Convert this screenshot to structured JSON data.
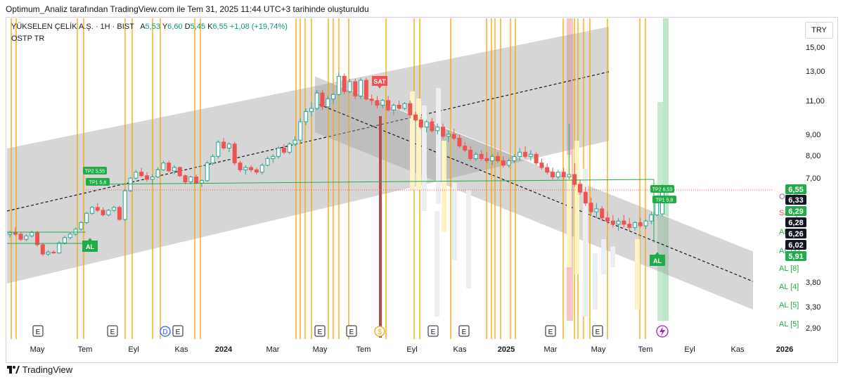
{
  "header": {
    "title": "Optimum_Analiz tarafından TradingView.com ile Tem 31, 2025 11:44 UTC+3 tarihinde oluşturuldu"
  },
  "legend": {
    "symbol": "YÜKSELEN ÇELİK A.Ş. · 1H · BIST",
    "o_label": "A",
    "o": "5,53",
    "h_label": "Y",
    "h": "6,60",
    "l_label": "D",
    "l": "5,45",
    "c_label": "K",
    "c": "6,55",
    "chg": "+1,08 (+19,74%)",
    "indicator": "OSTP TR"
  },
  "currency_button": "TRY",
  "footer": {
    "brand": "TradingView"
  },
  "colors": {
    "up": "#26a69a",
    "down": "#ef5350",
    "vline": "#f7a600",
    "channel": "#9e9e9e",
    "signal": "#22ab49"
  },
  "chart_data": {
    "type": "candlestick",
    "y_scale": "log",
    "ylim": [
      2.7,
      17
    ],
    "y_ticks": [
      "15,00",
      "13,00",
      "11,00",
      "9,00",
      "8,00",
      "7,00",
      "3,80",
      "3,30",
      "2,90"
    ],
    "x_ticks": [
      "May",
      "Tem",
      "Eyl",
      "Kas",
      "2024",
      "Mar",
      "May",
      "Tem",
      "Eyl",
      "Kas",
      "2025",
      "Mar",
      "May",
      "Tem",
      "Eyl",
      "Kas",
      "2026"
    ],
    "price_badges": [
      {
        "label": "6,55",
        "color": "#22ab49"
      },
      {
        "label": "6,33",
        "color": "#131722"
      },
      {
        "label": "6,29",
        "color": "#22ab49"
      },
      {
        "label": "6,28",
        "color": "#131722"
      },
      {
        "label": "6,26",
        "color": "#131722"
      },
      {
        "label": "6,02",
        "color": "#131722"
      },
      {
        "label": "5,91",
        "color": "#22ab49"
      }
    ],
    "side_labels": [
      "OptiSy",
      "SAT [1",
      "AL [6]",
      "AL [31",
      "AL [8]",
      "AL [4]",
      "AL [5]",
      "AL [5]"
    ],
    "signals": [
      "AL",
      "AL",
      "SAT",
      "AL"
    ],
    "tp_labels": [
      "TP2 5,55",
      "TP1 5,8",
      "TP2 6,53",
      "TP1 5,8"
    ],
    "event_markers": [
      "E",
      "E",
      "D",
      "E",
      "E",
      "E",
      "S",
      "E",
      "E",
      "E",
      "E"
    ],
    "candles": [
      [
        4.9,
        5.0,
        4.8,
        4.95
      ],
      [
        4.95,
        5.1,
        4.85,
        4.9
      ],
      [
        4.9,
        4.95,
        4.7,
        4.75
      ],
      [
        4.75,
        4.9,
        4.7,
        4.85
      ],
      [
        4.85,
        5.0,
        4.8,
        4.95
      ],
      [
        4.95,
        5.0,
        4.55,
        4.6
      ],
      [
        4.6,
        4.65,
        4.3,
        4.35
      ],
      [
        4.35,
        4.45,
        4.3,
        4.4
      ],
      [
        4.4,
        4.45,
        4.35,
        4.38
      ],
      [
        4.38,
        4.7,
        4.36,
        4.65
      ],
      [
        4.65,
        4.85,
        4.6,
        4.8
      ],
      [
        4.8,
        4.95,
        4.75,
        4.9
      ],
      [
        4.9,
        5.1,
        4.85,
        5.05
      ],
      [
        5.05,
        5.3,
        5.0,
        5.25
      ],
      [
        5.25,
        5.6,
        5.2,
        5.55
      ],
      [
        5.55,
        5.8,
        5.5,
        5.75
      ],
      [
        5.75,
        5.9,
        5.6,
        5.65
      ],
      [
        5.65,
        5.75,
        5.45,
        5.5
      ],
      [
        5.5,
        5.7,
        5.45,
        5.65
      ],
      [
        5.65,
        5.8,
        5.6,
        5.75
      ],
      [
        5.75,
        5.8,
        5.3,
        5.35
      ],
      [
        5.35,
        6.4,
        5.3,
        6.35
      ],
      [
        6.35,
        6.9,
        6.3,
        6.85
      ],
      [
        6.85,
        7.2,
        6.8,
        7.1
      ],
      [
        7.1,
        7.3,
        6.9,
        6.95
      ],
      [
        6.95,
        7.1,
        6.7,
        6.8
      ],
      [
        6.8,
        7.0,
        6.6,
        6.9
      ],
      [
        6.9,
        7.3,
        6.85,
        7.2
      ],
      [
        7.2,
        7.6,
        7.15,
        7.5
      ],
      [
        7.5,
        7.6,
        7.1,
        7.15
      ],
      [
        7.15,
        7.4,
        7.0,
        7.3
      ],
      [
        7.3,
        7.35,
        6.9,
        6.95
      ],
      [
        6.95,
        7.0,
        6.6,
        6.7
      ],
      [
        6.7,
        6.95,
        6.6,
        6.9
      ],
      [
        6.9,
        7.0,
        6.6,
        6.65
      ],
      [
        6.65,
        6.8,
        6.5,
        6.75
      ],
      [
        6.75,
        7.6,
        6.7,
        7.5
      ],
      [
        7.5,
        7.9,
        7.4,
        7.8
      ],
      [
        7.8,
        8.6,
        7.7,
        8.5
      ],
      [
        8.5,
        8.7,
        8.1,
        8.2
      ],
      [
        8.2,
        8.5,
        8.0,
        8.4
      ],
      [
        8.4,
        8.5,
        7.4,
        7.5
      ],
      [
        7.5,
        7.6,
        7.1,
        7.2
      ],
      [
        7.2,
        7.4,
        7.0,
        7.3
      ],
      [
        7.3,
        7.4,
        7.1,
        7.2
      ],
      [
        7.2,
        7.3,
        7.0,
        7.1
      ],
      [
        7.1,
        7.5,
        7.0,
        7.4
      ],
      [
        7.4,
        7.8,
        7.35,
        7.7
      ],
      [
        7.7,
        7.9,
        7.5,
        7.8
      ],
      [
        7.8,
        8.3,
        7.7,
        8.2
      ],
      [
        8.2,
        8.4,
        7.9,
        8.0
      ],
      [
        8.0,
        8.5,
        7.9,
        8.4
      ],
      [
        8.4,
        8.8,
        8.3,
        8.6
      ],
      [
        8.6,
        9.8,
        8.5,
        9.6
      ],
      [
        9.6,
        10.4,
        9.4,
        10.2
      ],
      [
        10.2,
        10.8,
        9.9,
        10.4
      ],
      [
        10.4,
        11.6,
        10.3,
        11.4
      ],
      [
        11.4,
        11.6,
        10.3,
        10.5
      ],
      [
        10.5,
        11.2,
        10.4,
        11.0
      ],
      [
        11.0,
        11.4,
        10.7,
        11.3
      ],
      [
        11.3,
        12.9,
        11.2,
        12.6
      ],
      [
        12.6,
        12.8,
        11.3,
        11.5
      ],
      [
        11.5,
        12.4,
        11.4,
        12.2
      ],
      [
        12.2,
        12.4,
        11.0,
        11.2
      ],
      [
        11.2,
        12.5,
        11.0,
        12.3
      ],
      [
        12.3,
        12.5,
        10.9,
        11.0
      ],
      [
        11.0,
        11.3,
        10.6,
        10.9
      ],
      [
        10.9,
        11.2,
        10.4,
        10.6
      ],
      [
        10.6,
        11.0,
        10.4,
        10.9
      ],
      [
        10.9,
        11.2,
        10.2,
        10.3
      ],
      [
        10.3,
        10.7,
        10.0,
        10.6
      ],
      [
        10.6,
        10.9,
        10.3,
        10.4
      ],
      [
        10.4,
        10.8,
        10.3,
        10.7
      ],
      [
        10.7,
        10.9,
        9.8,
        10.0
      ],
      [
        10.0,
        10.2,
        9.6,
        9.7
      ],
      [
        9.7,
        9.9,
        9.2,
        9.3
      ],
      [
        9.3,
        9.7,
        9.0,
        9.6
      ],
      [
        9.6,
        9.8,
        9.0,
        9.1
      ],
      [
        9.1,
        9.5,
        8.9,
        9.3
      ],
      [
        9.3,
        9.5,
        8.7,
        8.8
      ],
      [
        8.8,
        9.1,
        8.5,
        8.9
      ],
      [
        8.9,
        9.2,
        8.6,
        8.7
      ],
      [
        8.7,
        8.9,
        8.2,
        8.3
      ],
      [
        8.3,
        8.5,
        8.0,
        8.1
      ],
      [
        8.1,
        8.3,
        7.6,
        7.7
      ],
      [
        7.7,
        8.0,
        7.6,
        7.9
      ],
      [
        7.9,
        8.1,
        7.6,
        7.7
      ],
      [
        7.7,
        8.0,
        7.5,
        7.6
      ],
      [
        7.6,
        7.9,
        7.4,
        7.8
      ],
      [
        7.8,
        8.0,
        7.5,
        7.6
      ],
      [
        7.6,
        7.8,
        7.3,
        7.4
      ],
      [
        7.4,
        7.7,
        7.3,
        7.6
      ],
      [
        7.6,
        7.9,
        7.5,
        7.8
      ],
      [
        7.8,
        8.2,
        7.6,
        8.0
      ],
      [
        8.0,
        8.3,
        7.7,
        7.8
      ],
      [
        7.8,
        8.1,
        7.6,
        7.9
      ],
      [
        7.9,
        8.0,
        7.4,
        7.5
      ],
      [
        7.5,
        7.7,
        7.2,
        7.3
      ],
      [
        7.3,
        7.5,
        7.0,
        7.1
      ],
      [
        7.1,
        7.3,
        6.8,
        6.9
      ],
      [
        6.9,
        7.2,
        6.8,
        7.1
      ],
      [
        7.1,
        7.3,
        6.8,
        6.9
      ],
      [
        6.9,
        9.5,
        6.8,
        7.0
      ],
      [
        7.0,
        7.5,
        6.5,
        6.6
      ],
      [
        6.6,
        6.8,
        6.2,
        6.3
      ],
      [
        6.3,
        6.5,
        5.8,
        5.9
      ],
      [
        5.9,
        6.1,
        5.5,
        5.6
      ],
      [
        5.6,
        5.9,
        5.4,
        5.7
      ],
      [
        5.7,
        5.8,
        5.3,
        5.4
      ],
      [
        5.4,
        5.6,
        5.2,
        5.3
      ],
      [
        5.3,
        5.5,
        5.1,
        5.2
      ],
      [
        5.2,
        5.4,
        5.0,
        5.3
      ],
      [
        5.3,
        5.5,
        5.1,
        5.2
      ],
      [
        5.2,
        5.4,
        5.0,
        5.1
      ],
      [
        5.1,
        5.3,
        5.0,
        5.25
      ],
      [
        5.25,
        5.4,
        5.1,
        5.15
      ],
      [
        5.15,
        5.35,
        5.05,
        5.3
      ],
      [
        5.3,
        5.6,
        5.2,
        5.5
      ],
      [
        5.5,
        6.1,
        5.45,
        6.0
      ],
      [
        5.53,
        6.6,
        5.45,
        6.55
      ]
    ]
  }
}
